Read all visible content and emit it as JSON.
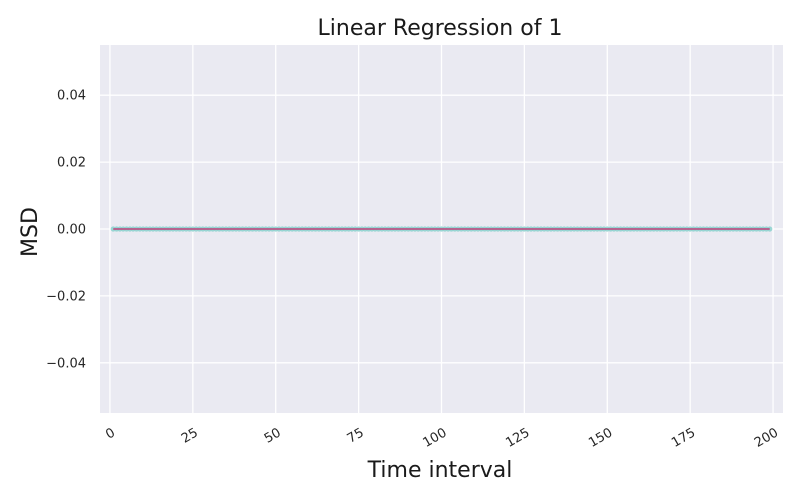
{
  "chart_data": {
    "type": "scatter",
    "title": "Linear Regression of 1",
    "xlabel": "Time interval",
    "ylabel": "MSD",
    "xlim": [
      -3,
      203
    ],
    "ylim": [
      -0.055,
      0.055
    ],
    "xticks": [
      0,
      25,
      50,
      75,
      100,
      125,
      150,
      175,
      200
    ],
    "yticks": [
      -0.04,
      -0.02,
      0.0,
      0.02,
      0.04
    ],
    "ytick_labels": [
      "−0.04",
      "−0.02",
      "0.00",
      "0.02",
      "0.04"
    ],
    "grid": true,
    "points": {
      "x_start": 1,
      "x_end": 199,
      "x_step": 1,
      "y": 0.0
    },
    "fit_line": {
      "x": [
        1,
        199
      ],
      "y": [
        0.0,
        0.0
      ]
    },
    "colors": {
      "background": "#eaeaf2",
      "grid": "#ffffff",
      "points": "#8fd3cf",
      "fit_line": "#c0407a"
    }
  }
}
